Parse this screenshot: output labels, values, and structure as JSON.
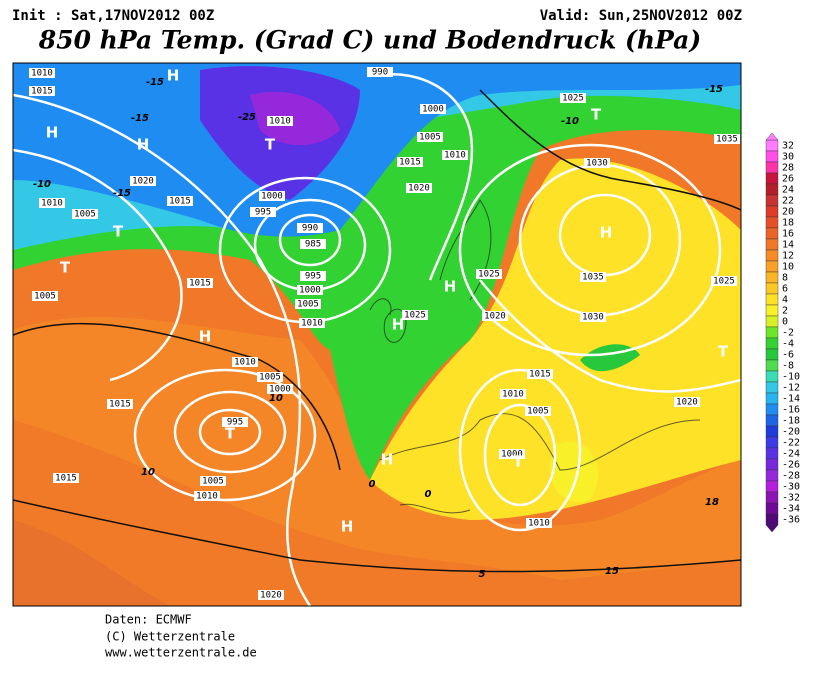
{
  "header": {
    "init": "Init : Sat,17NOV2012 00Z",
    "valid": "Valid: Sun,25NOV2012 00Z",
    "title": "850 hPa Temp. (Grad C) und Bodendruck (hPa)"
  },
  "colorbar": {
    "ticks": [
      32,
      30,
      28,
      26,
      24,
      22,
      20,
      18,
      16,
      14,
      12,
      10,
      8,
      6,
      4,
      2,
      0,
      -2,
      -4,
      -6,
      -8,
      -10,
      -12,
      -14,
      -16,
      -18,
      -20,
      -22,
      -24,
      -26,
      -28,
      -30,
      -32,
      -34,
      -36
    ],
    "colors": [
      "#ff7dff",
      "#ff4fe8",
      "#ff33aa",
      "#c8143c",
      "#b41e28",
      "#c83232",
      "#dc3c28",
      "#e65028",
      "#eb6428",
      "#f07828",
      "#f58c28",
      "#f8a028",
      "#fab428",
      "#fcc828",
      "#fde228",
      "#f8f028",
      "#d8f028",
      "#6ee628",
      "#32d232",
      "#28c83c",
      "#50dc50",
      "#3cdcb4",
      "#32c8e6",
      "#28b4f0",
      "#1e8cf0",
      "#1e64e6",
      "#1e3cdc",
      "#3c3ce6",
      "#5a32e6",
      "#7828dc",
      "#9628dc",
      "#b41edc",
      "#8c14b4",
      "#6e0a96",
      "#500a78"
    ]
  },
  "map": {
    "labels": [
      "1010",
      "1015",
      "H",
      "-15",
      "H",
      "-15",
      "H",
      "-25",
      "T",
      "1010",
      "1020",
      "-15",
      "1015",
      "-10",
      "1010",
      "1005",
      "T",
      "T",
      "1005",
      "1015",
      "H",
      "1000",
      "995",
      "990",
      "985",
      "995",
      "1000",
      "1005",
      "1010",
      "990",
      "1000",
      "1005",
      "1015",
      "1010",
      "1020",
      "1025",
      "-10",
      "T",
      "-15",
      "1035",
      "1030",
      "H",
      "1035",
      "1030",
      "1025",
      "1025",
      "1020",
      "1025",
      "H",
      "H",
      "1010",
      "1005",
      "1000",
      "995",
      "T",
      "1005",
      "1010",
      "1015",
      "1015",
      "10",
      "10",
      "H",
      "0",
      "H",
      "1015",
      "1010",
      "1005",
      "1000",
      "T",
      "1010",
      "T",
      "1020",
      "15",
      "18",
      "1020",
      "5",
      "0"
    ]
  },
  "footer": {
    "source": "Daten: ECMWF",
    "copyright": "(C) Wetterzentrale",
    "url": "www.wetterzentrale.de"
  }
}
